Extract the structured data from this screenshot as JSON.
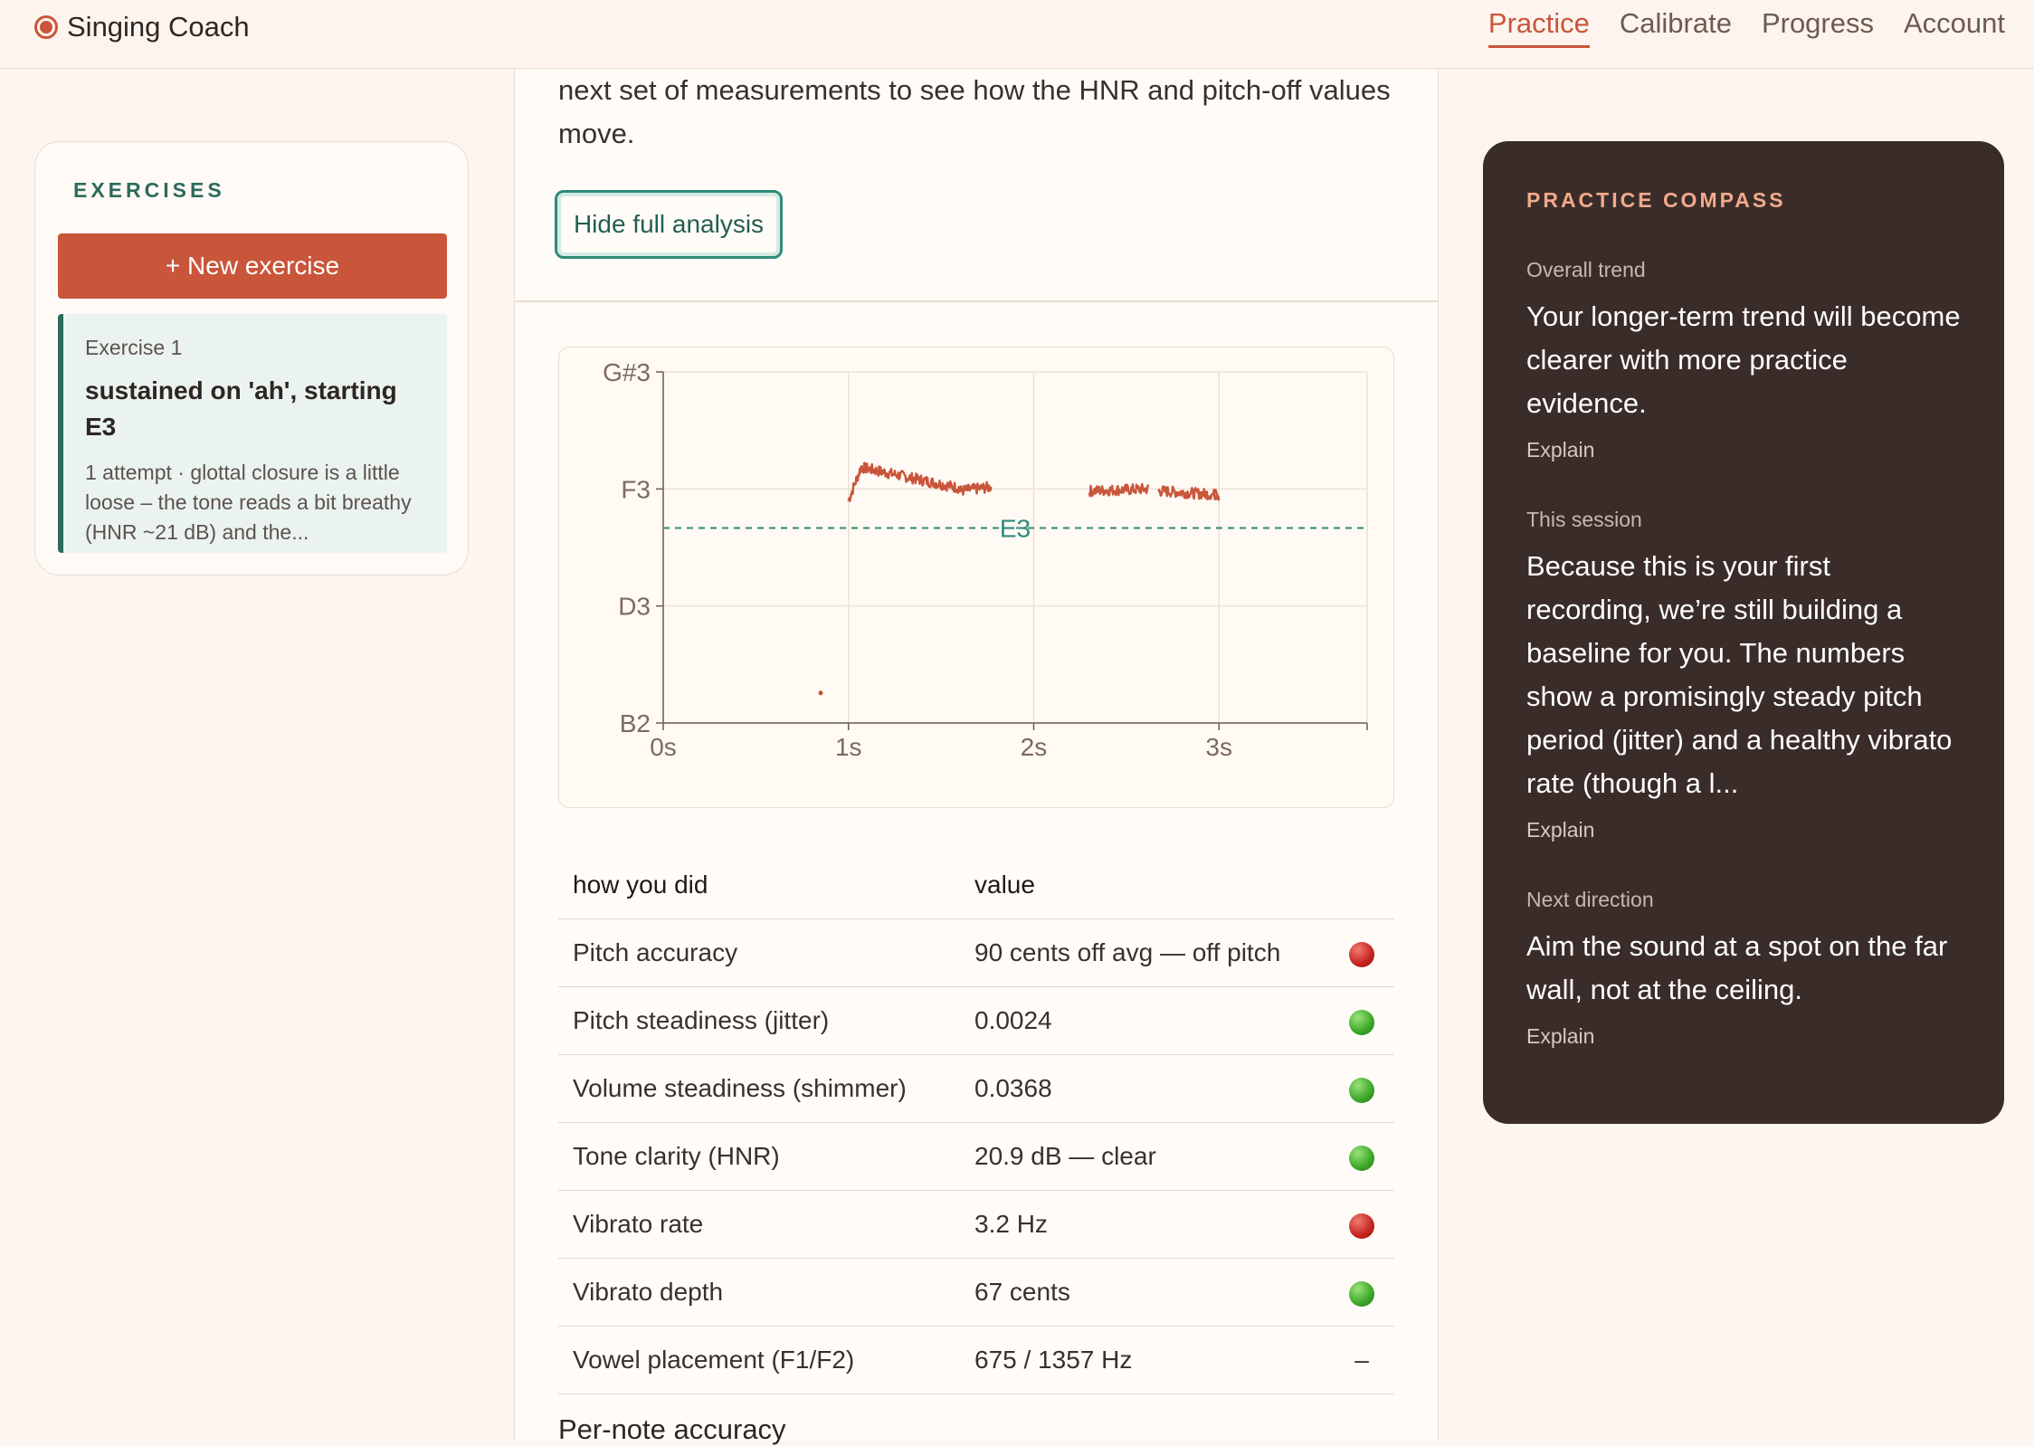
{
  "app": {
    "title": "Singing Coach"
  },
  "nav": [
    {
      "label": "Practice",
      "active": true
    },
    {
      "label": "Calibrate",
      "active": false
    },
    {
      "label": "Progress",
      "active": false
    },
    {
      "label": "Account",
      "active": false
    }
  ],
  "sidebar": {
    "title": "EXERCISES",
    "new_button": "+ New exercise",
    "exercise": {
      "number": "Exercise 1",
      "title": "sustained on 'ah', starting E3",
      "description": "1 attempt · glottal closure is a little loose – the tone reads a bit breathy (HNR ~21 dB) and the..."
    }
  },
  "main": {
    "intro_text": "next set of measurements to see how the HNR and pitch-off values move.",
    "hide_button": "Hide full analysis",
    "table": {
      "headers": [
        "how you did",
        "value"
      ],
      "rows": [
        {
          "label": "Pitch accuracy",
          "value": "90 cents off avg — off pitch",
          "status": "red"
        },
        {
          "label": "Pitch steadiness (jitter)",
          "value": "0.0024",
          "status": "green"
        },
        {
          "label": "Volume steadiness (shimmer)",
          "value": "0.0368",
          "status": "green"
        },
        {
          "label": "Tone clarity (HNR)",
          "value": "20.9 dB — clear",
          "status": "green"
        },
        {
          "label": "Vibrato rate",
          "value": "3.2 Hz",
          "status": "red"
        },
        {
          "label": "Vibrato depth",
          "value": "67 cents",
          "status": "green"
        },
        {
          "label": "Vowel placement (F1/F2)",
          "value": "675 / 1357 Hz",
          "status": "none",
          "status_text": "–"
        }
      ]
    },
    "per_note_heading": "Per-note accuracy"
  },
  "chart_data": {
    "type": "line",
    "y_ticks": [
      "G#3",
      "F3",
      "D3",
      "B2"
    ],
    "x_ticks": [
      "0s",
      "1s",
      "2s",
      "3s"
    ],
    "xlim": [
      0,
      3.8
    ],
    "target": {
      "label": "E3"
    },
    "colors": {
      "pitch": "#c9553a",
      "target": "#2f8a79"
    }
  },
  "compass": {
    "title": "PRACTICE COMPASS",
    "sections": [
      {
        "label": "Overall trend",
        "body": "Your longer-term trend will become clearer with more practice evidence.",
        "explain": "Explain"
      },
      {
        "label": "This session",
        "body": "Because this is your first recording, we’re still building a baseline for you. The numbers show a promisingly steady pitch period (jitter) and a healthy vibrato rate (though a l...",
        "explain": "Explain"
      },
      {
        "label": "Next direction",
        "body": "Aim the sound at a spot on the far wall, not at the ceiling.",
        "explain": "Explain"
      }
    ]
  }
}
